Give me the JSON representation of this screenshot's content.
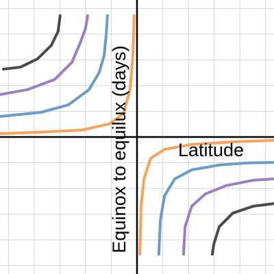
{
  "chart_data": {
    "type": "line",
    "xlabel": "Latitude",
    "ylabel": "Equinox to equilux (days)",
    "xlim": [
      -5.33,
      5.33
    ],
    "ylim": [
      -5.33,
      5.33
    ],
    "xticks": [
      -5,
      -4,
      -3,
      -2,
      -1,
      0,
      1,
      2,
      3,
      4,
      5
    ],
    "yticks": [
      -5,
      -4,
      -3,
      -2,
      -1,
      0,
      1,
      2,
      3,
      4,
      5
    ],
    "grid": true,
    "series": [
      {
        "color": "#f7a35c",
        "x": [
          -5.33,
          -3.73,
          -2.13,
          -1.07,
          -0.53,
          -0.27,
          -0.16,
          -0.11,
          null,
          0.11,
          0.16,
          0.27,
          0.53,
          1.07,
          2.13,
          3.73,
          5.33
        ],
        "values": [
          0.13,
          0.19,
          0.27,
          0.51,
          0.91,
          1.84,
          3.17,
          4.72,
          null,
          -4.56,
          -2.69,
          -1.63,
          -0.83,
          -0.48,
          -0.29,
          -0.19,
          -0.13
        ]
      },
      {
        "color": "#6b9bc7",
        "x": [
          -5.33,
          -3.73,
          -2.67,
          -1.87,
          -1.47,
          -1.28,
          -1.2,
          -1.15,
          null,
          0.85,
          0.91,
          1.07,
          1.47,
          2.13,
          3.2,
          4.27,
          5.33
        ],
        "values": [
          0.8,
          0.96,
          1.25,
          1.84,
          2.51,
          3.17,
          3.97,
          4.72,
          null,
          -4.56,
          -3.23,
          -2.29,
          -1.63,
          -1.28,
          -1.09,
          -1.01,
          -0.99
        ]
      },
      {
        "color": "#9b7fc2",
        "x": [
          -5.33,
          -4.27,
          -3.2,
          -2.53,
          -2.19,
          -2,
          -1.92,
          null,
          1.81,
          1.87,
          2.13,
          2.67,
          3.47,
          4.53,
          5.33
        ],
        "values": [
          1.65,
          1.84,
          2.24,
          2.91,
          3.71,
          4.24,
          4.72,
          null,
          -4.56,
          -3.49,
          -2.69,
          -2.21,
          -1.89,
          -1.68,
          -1.63
        ]
      },
      {
        "color": "#4a4a4a",
        "x": [
          -5.2,
          -4.53,
          -3.87,
          -3.33,
          -3.07,
          -2.99,
          null,
          2.93,
          2.99,
          3.2,
          3.73,
          4.53,
          5.33
        ],
        "values": [
          2.64,
          2.72,
          3.04,
          3.57,
          4.11,
          4.72,
          null,
          -4.56,
          -4.16,
          -3.49,
          -2.96,
          -2.69,
          -2.59
        ]
      }
    ]
  }
}
